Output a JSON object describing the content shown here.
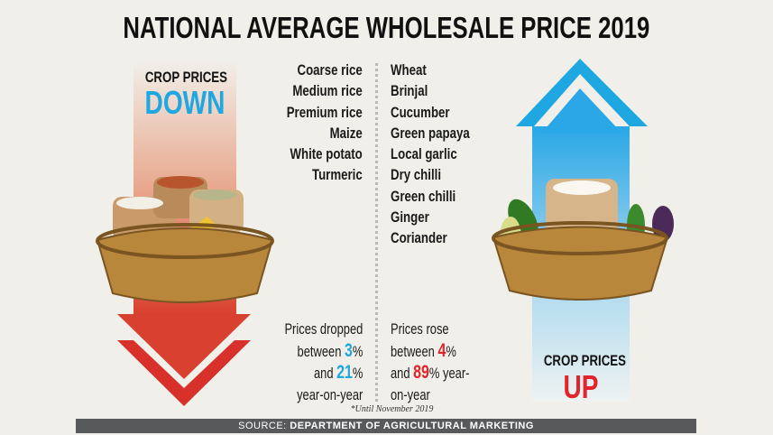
{
  "title": "NATIONAL AVERAGE WHOLESALE PRICE 2019",
  "down_panel": {
    "label": "CROP PRICES",
    "direction": "DOWN",
    "direction_color": "#1ea7e1",
    "arrow_color": "#d8312b"
  },
  "up_panel": {
    "label": "CROP PRICES",
    "direction": "UP",
    "direction_color": "#e0262c",
    "arrow_color": "#1ea7e1"
  },
  "crops_down": [
    "Coarse rice",
    "Medium rice",
    "Premium rice",
    "Maize",
    "White potato",
    "Turmeric"
  ],
  "crops_up": [
    "Wheat",
    "Brinjal",
    "Cucumber",
    "Green papaya",
    "Local garlic",
    "Dry chilli",
    "Green chilli",
    "Ginger",
    "Coriander"
  ],
  "down_note": {
    "line1": "Prices dropped",
    "between": "between ",
    "low": "3",
    "pct": "%",
    "and": "and ",
    "high": "21",
    "line4": "year-on-year"
  },
  "up_note": {
    "line1": "Prices rose",
    "between": "between ",
    "low": "4",
    "pct": "%",
    "and": "and ",
    "high": "89",
    "pct2": "% year-",
    "line4": "on-year"
  },
  "footnote": "*Until November 2019",
  "source": {
    "prefix": "SOURCE: ",
    "name": "DEPARTMENT OF AGRICULTURAL MARKETING"
  }
}
